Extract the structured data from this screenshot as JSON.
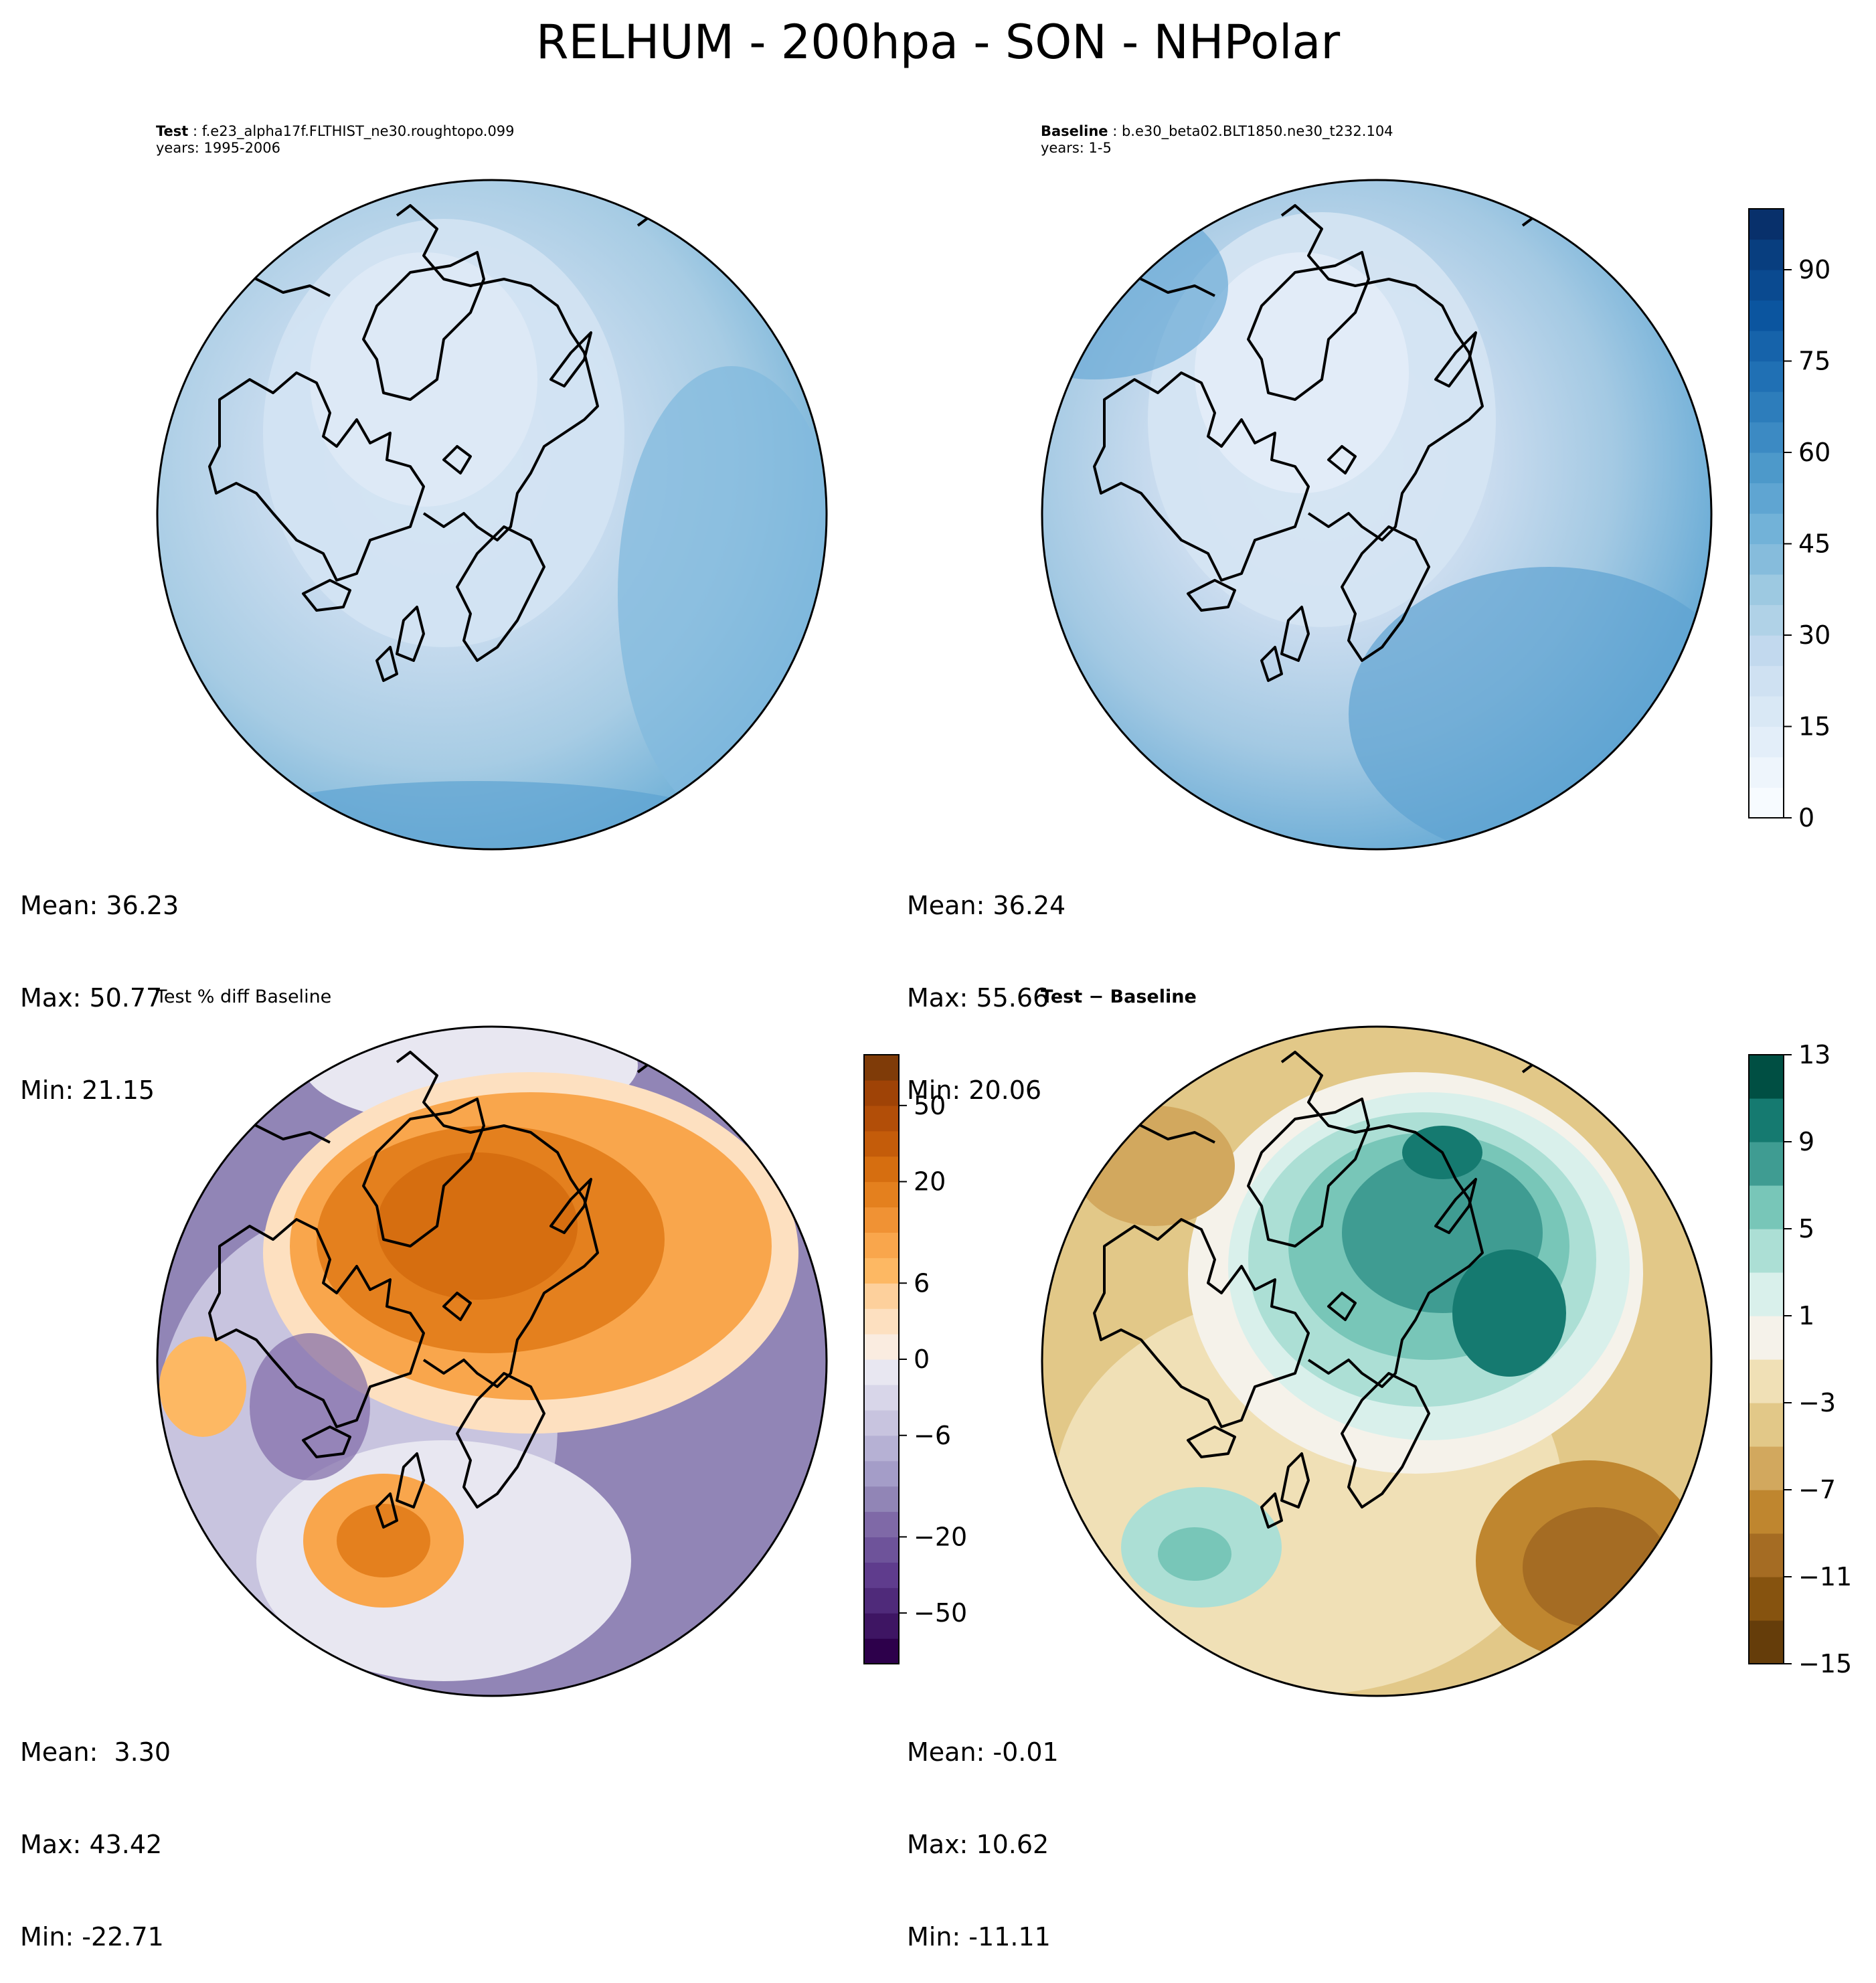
{
  "title": "RELHUM - 200hpa - SON - NHPolar",
  "panels": {
    "test": {
      "case_label": "Test",
      "case_name": "f.e23_alpha17f.FLTHIST_ne30.roughtopo.099",
      "years": "years: 1995-2006",
      "mean": "Mean: 36.23",
      "max": "Max: 50.77",
      "min": "Min: 21.15"
    },
    "baseline": {
      "case_label": "Baseline",
      "case_name": "b.e30_beta02.BLT1850.ne30_t232.104",
      "years": "years: 1-5",
      "mean": "Mean: 36.24",
      "max": "Max: 55.66",
      "min": "Min: 20.06"
    },
    "pct_diff": {
      "title": "Test % diff Baseline",
      "mean": "Mean:  3.30",
      "max": "Max: 43.42",
      "min": "Min: -22.71"
    },
    "diff": {
      "title": "Test − Baseline",
      "mean": "Mean: -0.01",
      "max": "Max: 10.62",
      "min": "Min: -11.11"
    }
  },
  "chart_data": [
    {
      "type": "heatmap",
      "name": "test",
      "projection": "North Polar Stereographic",
      "variable": "RELHUM",
      "level": "200hpa",
      "season": "SON",
      "colormap": "Blues",
      "mean": 36.23,
      "max": 50.77,
      "min": 21.15
    },
    {
      "type": "heatmap",
      "name": "baseline",
      "projection": "North Polar Stereographic",
      "colormap": "Blues",
      "mean": 36.24,
      "max": 55.66,
      "min": 20.06,
      "colorbar": {
        "levels": [
          0,
          5,
          10,
          15,
          20,
          25,
          30,
          35,
          40,
          45,
          50,
          55,
          60,
          65,
          70,
          75,
          80,
          85,
          90,
          95,
          100
        ],
        "tick_values": [
          0,
          15,
          30,
          45,
          60,
          75,
          90
        ],
        "tick_labels": [
          "0",
          "15",
          "30",
          "45",
          "60",
          "75",
          "90"
        ],
        "colors": [
          "#f7fbff",
          "#eef5fc",
          "#e3eef9",
          "#d9e8f5",
          "#cfe1f2",
          "#c2d9ee",
          "#b0d2e7",
          "#9dc9e1",
          "#86bcdc",
          "#72b2d8",
          "#5fa5d2",
          "#4d99ca",
          "#3c8ac3",
          "#2d7dbb",
          "#2070b4",
          "#1663aa",
          "#0b559f",
          "#0a4a90",
          "#083e7f",
          "#08306b"
        ]
      }
    },
    {
      "type": "heatmap",
      "name": "pct_diff",
      "projection": "North Polar Stereographic",
      "colormap": "PuOr_r",
      "mean": 3.3,
      "max": 43.42,
      "min": -22.71,
      "colorbar": {
        "levels": [
          -100,
          -75,
          -50,
          -40,
          -30,
          -20,
          -15,
          -10,
          -8,
          -6,
          -4,
          -2,
          0,
          2,
          4,
          6,
          8,
          10,
          15,
          20,
          30,
          40,
          50,
          75,
          100
        ],
        "tick_values": [
          -50,
          -20,
          -6,
          0,
          6,
          20,
          50
        ],
        "tick_labels": [
          "−50",
          "−20",
          "−6",
          "0",
          "6",
          "20",
          "50"
        ],
        "colors": [
          "#2d004b",
          "#3e1563",
          "#4f2a7a",
          "#5f3c8d",
          "#6e539a",
          "#7f69a7",
          "#9185b6",
          "#a49dc8",
          "#b6b1d4",
          "#c8c4df",
          "#d8d6e9",
          "#e8e7f1",
          "#faece0",
          "#fde0c0",
          "#fdd09c",
          "#fdb863",
          "#f9a64c",
          "#f09234",
          "#e4801e",
          "#d66e10",
          "#c45c0a",
          "#b24e08",
          "#9f4306",
          "#7f3b08"
        ]
      }
    },
    {
      "type": "heatmap",
      "name": "diff",
      "projection": "North Polar Stereographic",
      "colormap": "BrBG",
      "mean": -0.01,
      "max": 10.62,
      "min": -11.11,
      "colorbar": {
        "levels": [
          -15,
          -13,
          -11,
          -9,
          -7,
          -5,
          -3,
          -1,
          1,
          3,
          5,
          7,
          9,
          11,
          13
        ],
        "tick_values": [
          -15,
          -11,
          -7,
          -3,
          1,
          5,
          9,
          13
        ],
        "tick_labels": [
          "−15",
          "−11",
          "−7",
          "−3",
          "1",
          "5",
          "9",
          "13"
        ],
        "colors": [
          "#653d0a",
          "#86530f",
          "#a56c23",
          "#bf862f",
          "#d2a85e",
          "#e2c888",
          "#f0e0b6",
          "#f5f2ea",
          "#d9f0eb",
          "#acdfd5",
          "#78c6b8",
          "#3f9c92",
          "#157a70",
          "#004f43"
        ]
      }
    }
  ]
}
